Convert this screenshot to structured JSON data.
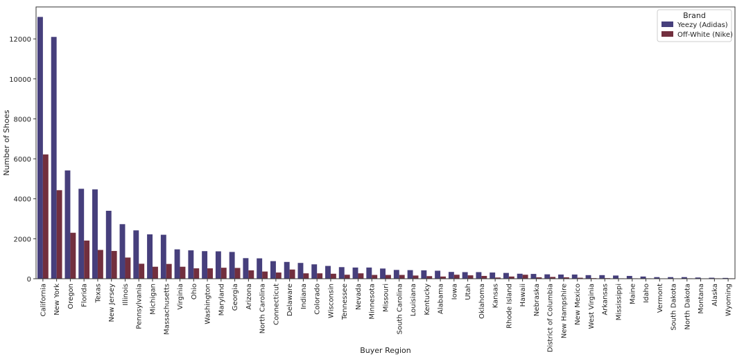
{
  "chart_data": {
    "type": "bar",
    "title": "",
    "xlabel": "Buyer Region",
    "ylabel": "Number of Shoes",
    "ylim": [
      0,
      13600
    ],
    "yticks": [
      0,
      2000,
      4000,
      6000,
      8000,
      10000,
      12000
    ],
    "grid": false,
    "legend": {
      "title": "Brand",
      "placement": "top-right"
    },
    "colors": {
      "Yeezy (Adidas)": "#463f7c",
      "Off-White (Nike)": "#722f3e"
    },
    "categories": [
      "California",
      "New York",
      "Oregon",
      "Florida",
      "Texas",
      "New Jersey",
      "Illinois",
      "Pennsylvania",
      "Michigan",
      "Massachusetts",
      "Virginia",
      "Ohio",
      "Washington",
      "Maryland",
      "Georgia",
      "Arizona",
      "North Carolina",
      "Connecticut",
      "Delaware",
      "Indiana",
      "Colorado",
      "Wisconsin",
      "Tennessee",
      "Nevada",
      "Minnesota",
      "Missouri",
      "South Carolina",
      "Louisiana",
      "Kentucky",
      "Alabama",
      "Iowa",
      "Utah",
      "Oklahoma",
      "Kansas",
      "Rhode Island",
      "Hawaii",
      "Nebraska",
      "District of Columbia",
      "New Hampshire",
      "New Mexico",
      "West Virginia",
      "Arkansas",
      "Mississippi",
      "Maine",
      "Idaho",
      "Vermont",
      "South Dakota",
      "North Dakota",
      "Montana",
      "Alaska",
      "Wyoming"
    ],
    "series": [
      {
        "name": "Yeezy (Adidas)",
        "values": [
          13100,
          12100,
          5420,
          4500,
          4470,
          3400,
          2730,
          2420,
          2220,
          2200,
          1470,
          1420,
          1380,
          1370,
          1340,
          1030,
          1020,
          880,
          840,
          790,
          720,
          640,
          580,
          560,
          560,
          510,
          440,
          430,
          420,
          400,
          340,
          330,
          330,
          310,
          290,
          250,
          240,
          220,
          210,
          210,
          180,
          180,
          160,
          140,
          110,
          80,
          80,
          80,
          60,
          50,
          40
        ]
      },
      {
        "name": "Off-White (Nike)",
        "values": [
          6220,
          4430,
          2300,
          1910,
          1440,
          1390,
          1060,
          750,
          600,
          740,
          600,
          520,
          520,
          550,
          540,
          420,
          360,
          310,
          460,
          270,
          270,
          250,
          200,
          270,
          190,
          190,
          190,
          160,
          130,
          110,
          200,
          170,
          140,
          60,
          110,
          200,
          70,
          90,
          70,
          50,
          30,
          30,
          20,
          20,
          20,
          10,
          10,
          20,
          10,
          20,
          20
        ]
      }
    ]
  }
}
